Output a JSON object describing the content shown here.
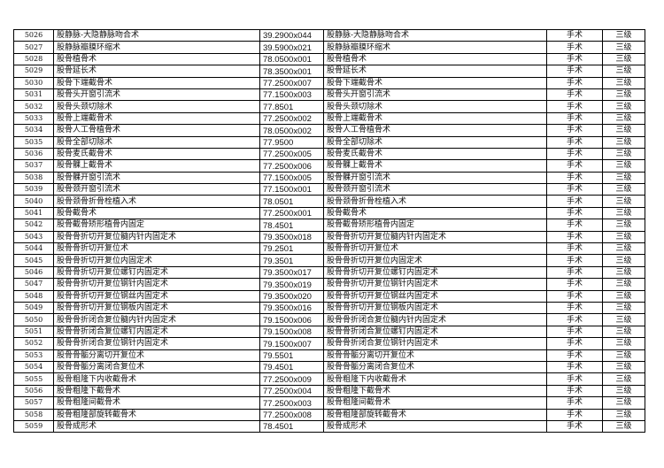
{
  "rows": [
    [
      "5026",
      "股静脉-大隐静脉吻合术",
      "39.2900x044",
      "股静脉-大隐静脉吻合术",
      "手术",
      "三级"
    ],
    [
      "5027",
      "股静脉瓣膜环缩术",
      "39.5900x021",
      "股静脉瓣膜环缩术",
      "手术",
      "三级"
    ],
    [
      "5028",
      "股骨植骨术",
      "78.0500x001",
      "股骨植骨术",
      "手术",
      "三级"
    ],
    [
      "5029",
      "股骨延长术",
      "78.3500x001",
      "股骨延长术",
      "手术",
      "三级"
    ],
    [
      "5030",
      "股骨下端截骨术",
      "77.2500x007",
      "股骨下端截骨术",
      "手术",
      "三级"
    ],
    [
      "5031",
      "股骨头开窗引流术",
      "77.1500x003",
      "股骨头开窗引流术",
      "手术",
      "三级"
    ],
    [
      "5032",
      "股骨头颈切除术",
      "77.8501",
      "股骨头颈切除术",
      "手术",
      "三级"
    ],
    [
      "5033",
      "股骨上端截骨术",
      "77.2500x002",
      "股骨上端截骨术",
      "手术",
      "三级"
    ],
    [
      "5034",
      "股骨人工骨植骨术",
      "78.0500x002",
      "股骨人工骨植骨术",
      "手术",
      "三级"
    ],
    [
      "5035",
      "股骨全部切除术",
      "77.9500",
      "股骨全部切除术",
      "手术",
      "三级"
    ],
    [
      "5036",
      "股骨麦氏截骨术",
      "77.2500x005",
      "股骨麦氏截骨术",
      "手术",
      "三级"
    ],
    [
      "5037",
      "股骨髁上截骨术",
      "77.2500x006",
      "股骨髁上截骨术",
      "手术",
      "三级"
    ],
    [
      "5038",
      "股骨髁开窗引流术",
      "77.1500x005",
      "股骨髁开窗引流术",
      "手术",
      "三级"
    ],
    [
      "5039",
      "股骨颈开窗引流术",
      "77.1500x001",
      "股骨颈开窗引流术",
      "手术",
      "三级"
    ],
    [
      "5040",
      "股骨颈骨折骨栓植入术",
      "78.0501",
      "股骨颈骨折骨栓植入术",
      "手术",
      "三级"
    ],
    [
      "5041",
      "股骨截骨术",
      "77.2500x001",
      "股骨截骨术",
      "手术",
      "三级"
    ],
    [
      "5042",
      "股骨截骨矫形植骨内固定",
      "78.4501",
      "股骨截骨矫形植骨内固定",
      "手术",
      "三级"
    ],
    [
      "5043",
      "股骨骨折切开复位髓内针内固定术",
      "79.3500x018",
      "股骨骨折切开复位髓内针内固定术",
      "手术",
      "三级"
    ],
    [
      "5044",
      "股骨骨折切开复位术",
      "79.2501",
      "股骨骨折切开复位术",
      "手术",
      "三级"
    ],
    [
      "5045",
      "股骨骨折切开复位内固定术",
      "79.3501",
      "股骨骨折切开复位内固定术",
      "手术",
      "三级"
    ],
    [
      "5046",
      "股骨骨折切开复位螺钉内固定术",
      "79.3500x017",
      "股骨骨折切开复位螺钉内固定术",
      "手术",
      "三级"
    ],
    [
      "5047",
      "股骨骨折切开复位钢针内固定术",
      "79.3500x019",
      "股骨骨折切开复位钢针内固定术",
      "手术",
      "三级"
    ],
    [
      "5048",
      "股骨骨折切开复位钢丝内固定术",
      "79.3500x020",
      "股骨骨折切开复位钢丝内固定术",
      "手术",
      "三级"
    ],
    [
      "5049",
      "股骨骨折切开复位钢板内固定术",
      "79.3500x016",
      "股骨骨折切开复位钢板内固定术",
      "手术",
      "三级"
    ],
    [
      "5050",
      "股骨骨折闭合复位髓内针内固定术",
      "79.1500x006",
      "股骨骨折闭合复位髓内针内固定术",
      "手术",
      "三级"
    ],
    [
      "5051",
      "股骨骨折闭合复位螺钉内固定术",
      "79.1500x008",
      "股骨骨折闭合复位螺钉内固定术",
      "手术",
      "三级"
    ],
    [
      "5052",
      "股骨骨折闭合复位钢针内固定术",
      "79.1500x007",
      "股骨骨折闭合复位钢针内固定术",
      "手术",
      "三级"
    ],
    [
      "5053",
      "股骨骨骺分离切开复位术",
      "79.5501",
      "股骨骨骺分离切开复位术",
      "手术",
      "三级"
    ],
    [
      "5054",
      "股骨骨骺分离闭合复位术",
      "79.4501",
      "股骨骨骺分离闭合复位术",
      "手术",
      "三级"
    ],
    [
      "5055",
      "股骨粗隆下内收截骨术",
      "77.2500x009",
      "股骨粗隆下内收截骨术",
      "手术",
      "三级"
    ],
    [
      "5056",
      "股骨粗隆下截骨术",
      "77.2500x004",
      "股骨粗隆下截骨术",
      "手术",
      "三级"
    ],
    [
      "5057",
      "股骨粗隆间截骨术",
      "77.2500x003",
      "股骨粗隆间截骨术",
      "手术",
      "三级"
    ],
    [
      "5058",
      "股骨粗隆部旋转截骨术",
      "77.2500x008",
      "股骨粗隆部旋转截骨术",
      "手术",
      "三级"
    ],
    [
      "5059",
      "股骨成形术",
      "78.4501",
      "股骨成形术",
      "手术",
      "三级"
    ]
  ]
}
